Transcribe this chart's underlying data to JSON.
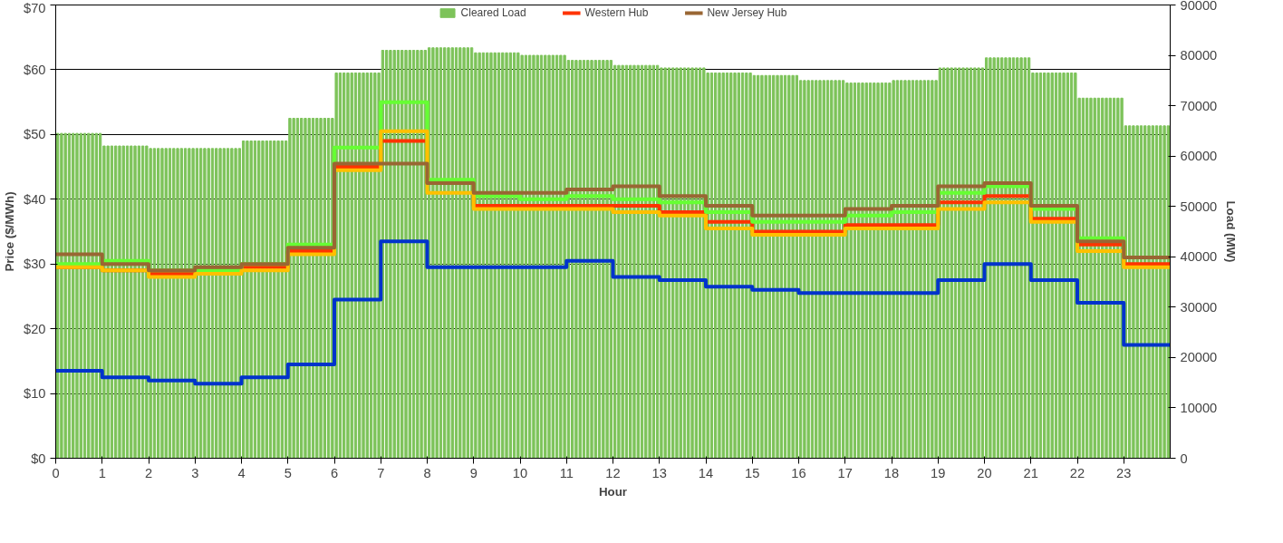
{
  "chart_data": {
    "type": "step",
    "xlabel": "Hour",
    "ylabel": "Price ($/MWh)",
    "y2label": "Load (MW)",
    "x": [
      0,
      1,
      2,
      3,
      4,
      5,
      6,
      7,
      8,
      9,
      10,
      11,
      12,
      13,
      14,
      15,
      16,
      17,
      18,
      19,
      20,
      21,
      22,
      23,
      24
    ],
    "xlim": [
      0,
      24
    ],
    "xticks": [
      0,
      1,
      2,
      3,
      4,
      5,
      6,
      7,
      8,
      9,
      10,
      11,
      12,
      13,
      14,
      15,
      16,
      17,
      18,
      19,
      20,
      21,
      22,
      23
    ],
    "ylim": [
      0,
      70
    ],
    "yticks": [
      {
        "value": 0,
        "label": "$0"
      },
      {
        "value": 10,
        "label": "$10"
      },
      {
        "value": 20,
        "label": "$20"
      },
      {
        "value": 30,
        "label": "$30"
      },
      {
        "value": 40,
        "label": "$40"
      },
      {
        "value": 50,
        "label": "$50"
      },
      {
        "value": 60,
        "label": "$60"
      },
      {
        "value": 70,
        "label": "$70"
      }
    ],
    "y2lim": [
      0,
      90000
    ],
    "y2ticks": [
      0,
      10000,
      20000,
      30000,
      40000,
      50000,
      60000,
      70000,
      80000,
      90000
    ],
    "grid": "y",
    "legend": "top",
    "series": [
      {
        "name": "Cleared Load",
        "type": "bar",
        "axis": "y2",
        "color": "#7dc35a",
        "x": [
          0.042,
          0.125,
          0.208,
          0.292,
          0.375,
          0.458,
          0.542,
          0.625,
          0.708,
          0.792,
          0.875,
          0.958,
          1.042,
          1.125,
          1.208,
          1.292,
          1.375,
          1.458,
          1.542,
          1.625,
          1.708,
          1.792,
          1.875,
          1.958,
          2.042,
          2.125,
          2.208,
          2.292,
          2.375,
          2.458,
          2.542,
          2.625,
          2.708,
          2.792,
          2.875,
          2.958,
          3.042,
          3.125,
          3.208,
          3.292,
          3.375,
          3.458,
          3.542,
          3.625,
          3.708,
          3.792,
          3.875,
          3.958,
          4.042,
          4.125,
          4.208,
          4.292,
          4.375,
          4.458,
          4.542,
          4.625,
          4.708,
          4.792,
          4.875,
          4.958,
          5.042,
          5.125,
          5.208,
          5.292,
          5.375,
          5.458,
          5.542,
          5.625,
          5.708,
          5.792,
          5.875,
          5.958,
          6.042,
          6.125,
          6.208,
          6.292,
          6.375,
          6.458,
          6.542,
          6.625,
          6.708,
          6.792,
          6.875,
          6.958,
          7.042,
          7.125,
          7.208,
          7.292,
          7.375,
          7.458,
          7.542,
          7.625,
          7.708,
          7.792,
          7.875,
          7.958,
          8.042,
          8.125,
          8.208,
          8.292,
          8.375,
          8.458,
          8.542,
          8.625,
          8.708,
          8.792,
          8.875,
          8.958,
          9.042,
          9.125,
          9.208,
          9.292,
          9.375,
          9.458,
          9.542,
          9.625,
          9.708,
          9.792,
          9.875,
          9.958,
          10.042,
          10.125,
          10.208,
          10.292,
          10.375,
          10.458,
          10.542,
          10.625,
          10.708,
          10.792,
          10.875,
          10.958,
          11.042,
          11.125,
          11.208,
          11.292,
          11.375,
          11.458,
          11.542,
          11.625,
          11.708,
          11.792,
          11.875,
          11.958,
          12.042,
          12.125,
          12.208,
          12.292,
          12.375,
          12.458,
          12.542,
          12.625,
          12.708,
          12.792,
          12.875,
          12.958,
          13.042,
          13.125,
          13.208,
          13.292,
          13.375,
          13.458,
          13.542,
          13.625,
          13.708,
          13.792,
          13.875,
          13.958,
          14.042,
          14.125,
          14.208,
          14.292,
          14.375,
          14.458,
          14.542,
          14.625,
          14.708,
          14.792,
          14.875,
          14.958,
          15.042,
          15.125,
          15.208,
          15.292,
          15.375,
          15.458,
          15.542,
          15.625,
          15.708,
          15.792,
          15.875,
          15.958,
          16.042,
          16.125,
          16.208,
          16.292,
          16.375,
          16.458,
          16.542,
          16.625,
          16.708,
          16.792,
          16.875,
          16.958,
          17.042,
          17.125,
          17.208,
          17.292,
          17.375,
          17.458,
          17.542,
          17.625,
          17.708,
          17.792,
          17.875,
          17.958,
          18.042,
          18.125,
          18.208,
          18.292,
          18.375,
          18.458,
          18.542,
          18.625,
          18.708,
          18.792,
          18.875,
          18.958,
          19.042,
          19.125,
          19.208,
          19.292,
          19.375,
          19.458,
          19.542,
          19.625,
          19.708,
          19.792,
          19.875,
          19.958,
          20.042,
          20.125,
          20.208,
          20.292,
          20.375,
          20.458,
          20.542,
          20.625,
          20.708,
          20.792,
          20.875,
          20.958,
          21.042,
          21.125,
          21.208,
          21.292,
          21.375,
          21.458,
          21.542,
          21.625,
          21.708,
          21.792,
          21.875,
          21.958,
          22.042,
          22.125,
          22.208,
          22.292,
          22.375,
          22.458,
          22.542,
          22.625,
          22.708,
          22.792,
          22.875,
          22.958,
          23.042,
          23.125,
          23.208,
          23.292,
          23.375,
          23.458,
          23.542,
          23.625,
          23.708,
          23.792,
          23.875,
          23.958
        ],
        "values": [
          64500,
          64500,
          64500,
          64500,
          64500,
          64500,
          64500,
          64500,
          64500,
          64500,
          64500,
          64500,
          62000,
          62000,
          62000,
          62000,
          62000,
          62000,
          62000,
          62000,
          62000,
          62000,
          62000,
          62000,
          61500,
          61500,
          61500,
          61500,
          61500,
          61500,
          61500,
          61500,
          61500,
          61500,
          61500,
          61500,
          61500,
          61500,
          61500,
          61500,
          61500,
          61500,
          61500,
          61500,
          61500,
          61500,
          61500,
          61500,
          63000,
          63000,
          63000,
          63000,
          63000,
          63000,
          63000,
          63000,
          63000,
          63000,
          63000,
          63000,
          67500,
          67500,
          67500,
          67500,
          67500,
          67500,
          67500,
          67500,
          67500,
          67500,
          67500,
          67500,
          76500,
          76500,
          76500,
          76500,
          76500,
          76500,
          76500,
          76500,
          76500,
          76500,
          76500,
          76500,
          81000,
          81000,
          81000,
          81000,
          81000,
          81000,
          81000,
          81000,
          81000,
          81000,
          81000,
          81000,
          81500,
          81500,
          81500,
          81500,
          81500,
          81500,
          81500,
          81500,
          81500,
          81500,
          81500,
          81500,
          80500,
          80500,
          80500,
          80500,
          80500,
          80500,
          80500,
          80500,
          80500,
          80500,
          80500,
          80500,
          80000,
          80000,
          80000,
          80000,
          80000,
          80000,
          80000,
          80000,
          80000,
          80000,
          80000,
          80000,
          79000,
          79000,
          79000,
          79000,
          79000,
          79000,
          79000,
          79000,
          79000,
          79000,
          79000,
          79000,
          78000,
          78000,
          78000,
          78000,
          78000,
          78000,
          78000,
          78000,
          78000,
          78000,
          78000,
          78000,
          77500,
          77500,
          77500,
          77500,
          77500,
          77500,
          77500,
          77500,
          77500,
          77500,
          77500,
          77500,
          76500,
          76500,
          76500,
          76500,
          76500,
          76500,
          76500,
          76500,
          76500,
          76500,
          76500,
          76500,
          76000,
          76000,
          76000,
          76000,
          76000,
          76000,
          76000,
          76000,
          76000,
          76000,
          76000,
          76000,
          75000,
          75000,
          75000,
          75000,
          75000,
          75000,
          75000,
          75000,
          75000,
          75000,
          75000,
          75000,
          74500,
          74500,
          74500,
          74500,
          74500,
          74500,
          74500,
          74500,
          74500,
          74500,
          74500,
          74500,
          75000,
          75000,
          75000,
          75000,
          75000,
          75000,
          75000,
          75000,
          75000,
          75000,
          75000,
          75000,
          77500,
          77500,
          77500,
          77500,
          77500,
          77500,
          77500,
          77500,
          77500,
          77500,
          77500,
          77500,
          79500,
          79500,
          79500,
          79500,
          79500,
          79500,
          79500,
          79500,
          79500,
          79500,
          79500,
          79500,
          76500,
          76500,
          76500,
          76500,
          76500,
          76500,
          76500,
          76500,
          76500,
          76500,
          76500,
          76500,
          71500,
          71500,
          71500,
          71500,
          71500,
          71500,
          71500,
          71500,
          71500,
          71500,
          71500,
          71500,
          66000,
          66000,
          66000,
          66000,
          66000,
          66000,
          66000,
          66000,
          66000,
          66000,
          66000,
          66000
        ]
      },
      {
        "name": "Western Hub",
        "color": "#ff3300",
        "values": [
          29.5,
          29,
          28.5,
          29,
          29.5,
          32,
          45,
          49,
          42.5,
          39,
          39,
          39,
          39,
          38,
          36.5,
          35,
          35,
          36,
          36,
          39.5,
          40.5,
          37,
          33,
          30,
          30
        ]
      },
      {
        "color": "#66ff33",
        "values": [
          30,
          30.5,
          29,
          29,
          30,
          33,
          48,
          55,
          43,
          40.5,
          40,
          40.5,
          40,
          39.5,
          38,
          36.5,
          36.5,
          37.5,
          38,
          41,
          42,
          38.5,
          34,
          31,
          31
        ]
      },
      {
        "color": "#0033cc",
        "values": [
          13.5,
          12.5,
          12,
          11.5,
          12.5,
          14.5,
          24.5,
          33.5,
          29.5,
          29.5,
          29.5,
          30.5,
          28,
          27.5,
          26.5,
          26,
          25.5,
          25.5,
          25.5,
          27.5,
          30,
          27.5,
          24,
          17.5,
          17.5
        ]
      },
      {
        "color": "#ffc000",
        "values": [
          29.5,
          29,
          28,
          28.5,
          29,
          31.5,
          44.5,
          50.5,
          41,
          38.5,
          38.5,
          38.5,
          38,
          37.5,
          35.5,
          34.5,
          34.5,
          35.5,
          35.5,
          38.5,
          39.5,
          36.5,
          32,
          29.5,
          29.5
        ]
      },
      {
        "name": "New Jersey Hub",
        "color": "#996633",
        "values": [
          31.5,
          30,
          29,
          29.5,
          30,
          32.5,
          45.5,
          45.5,
          42.5,
          41,
          41,
          41.5,
          42,
          40.5,
          39,
          37.5,
          37.5,
          38.5,
          39,
          42,
          42.5,
          39,
          33.5,
          31,
          31
        ]
      }
    ]
  }
}
